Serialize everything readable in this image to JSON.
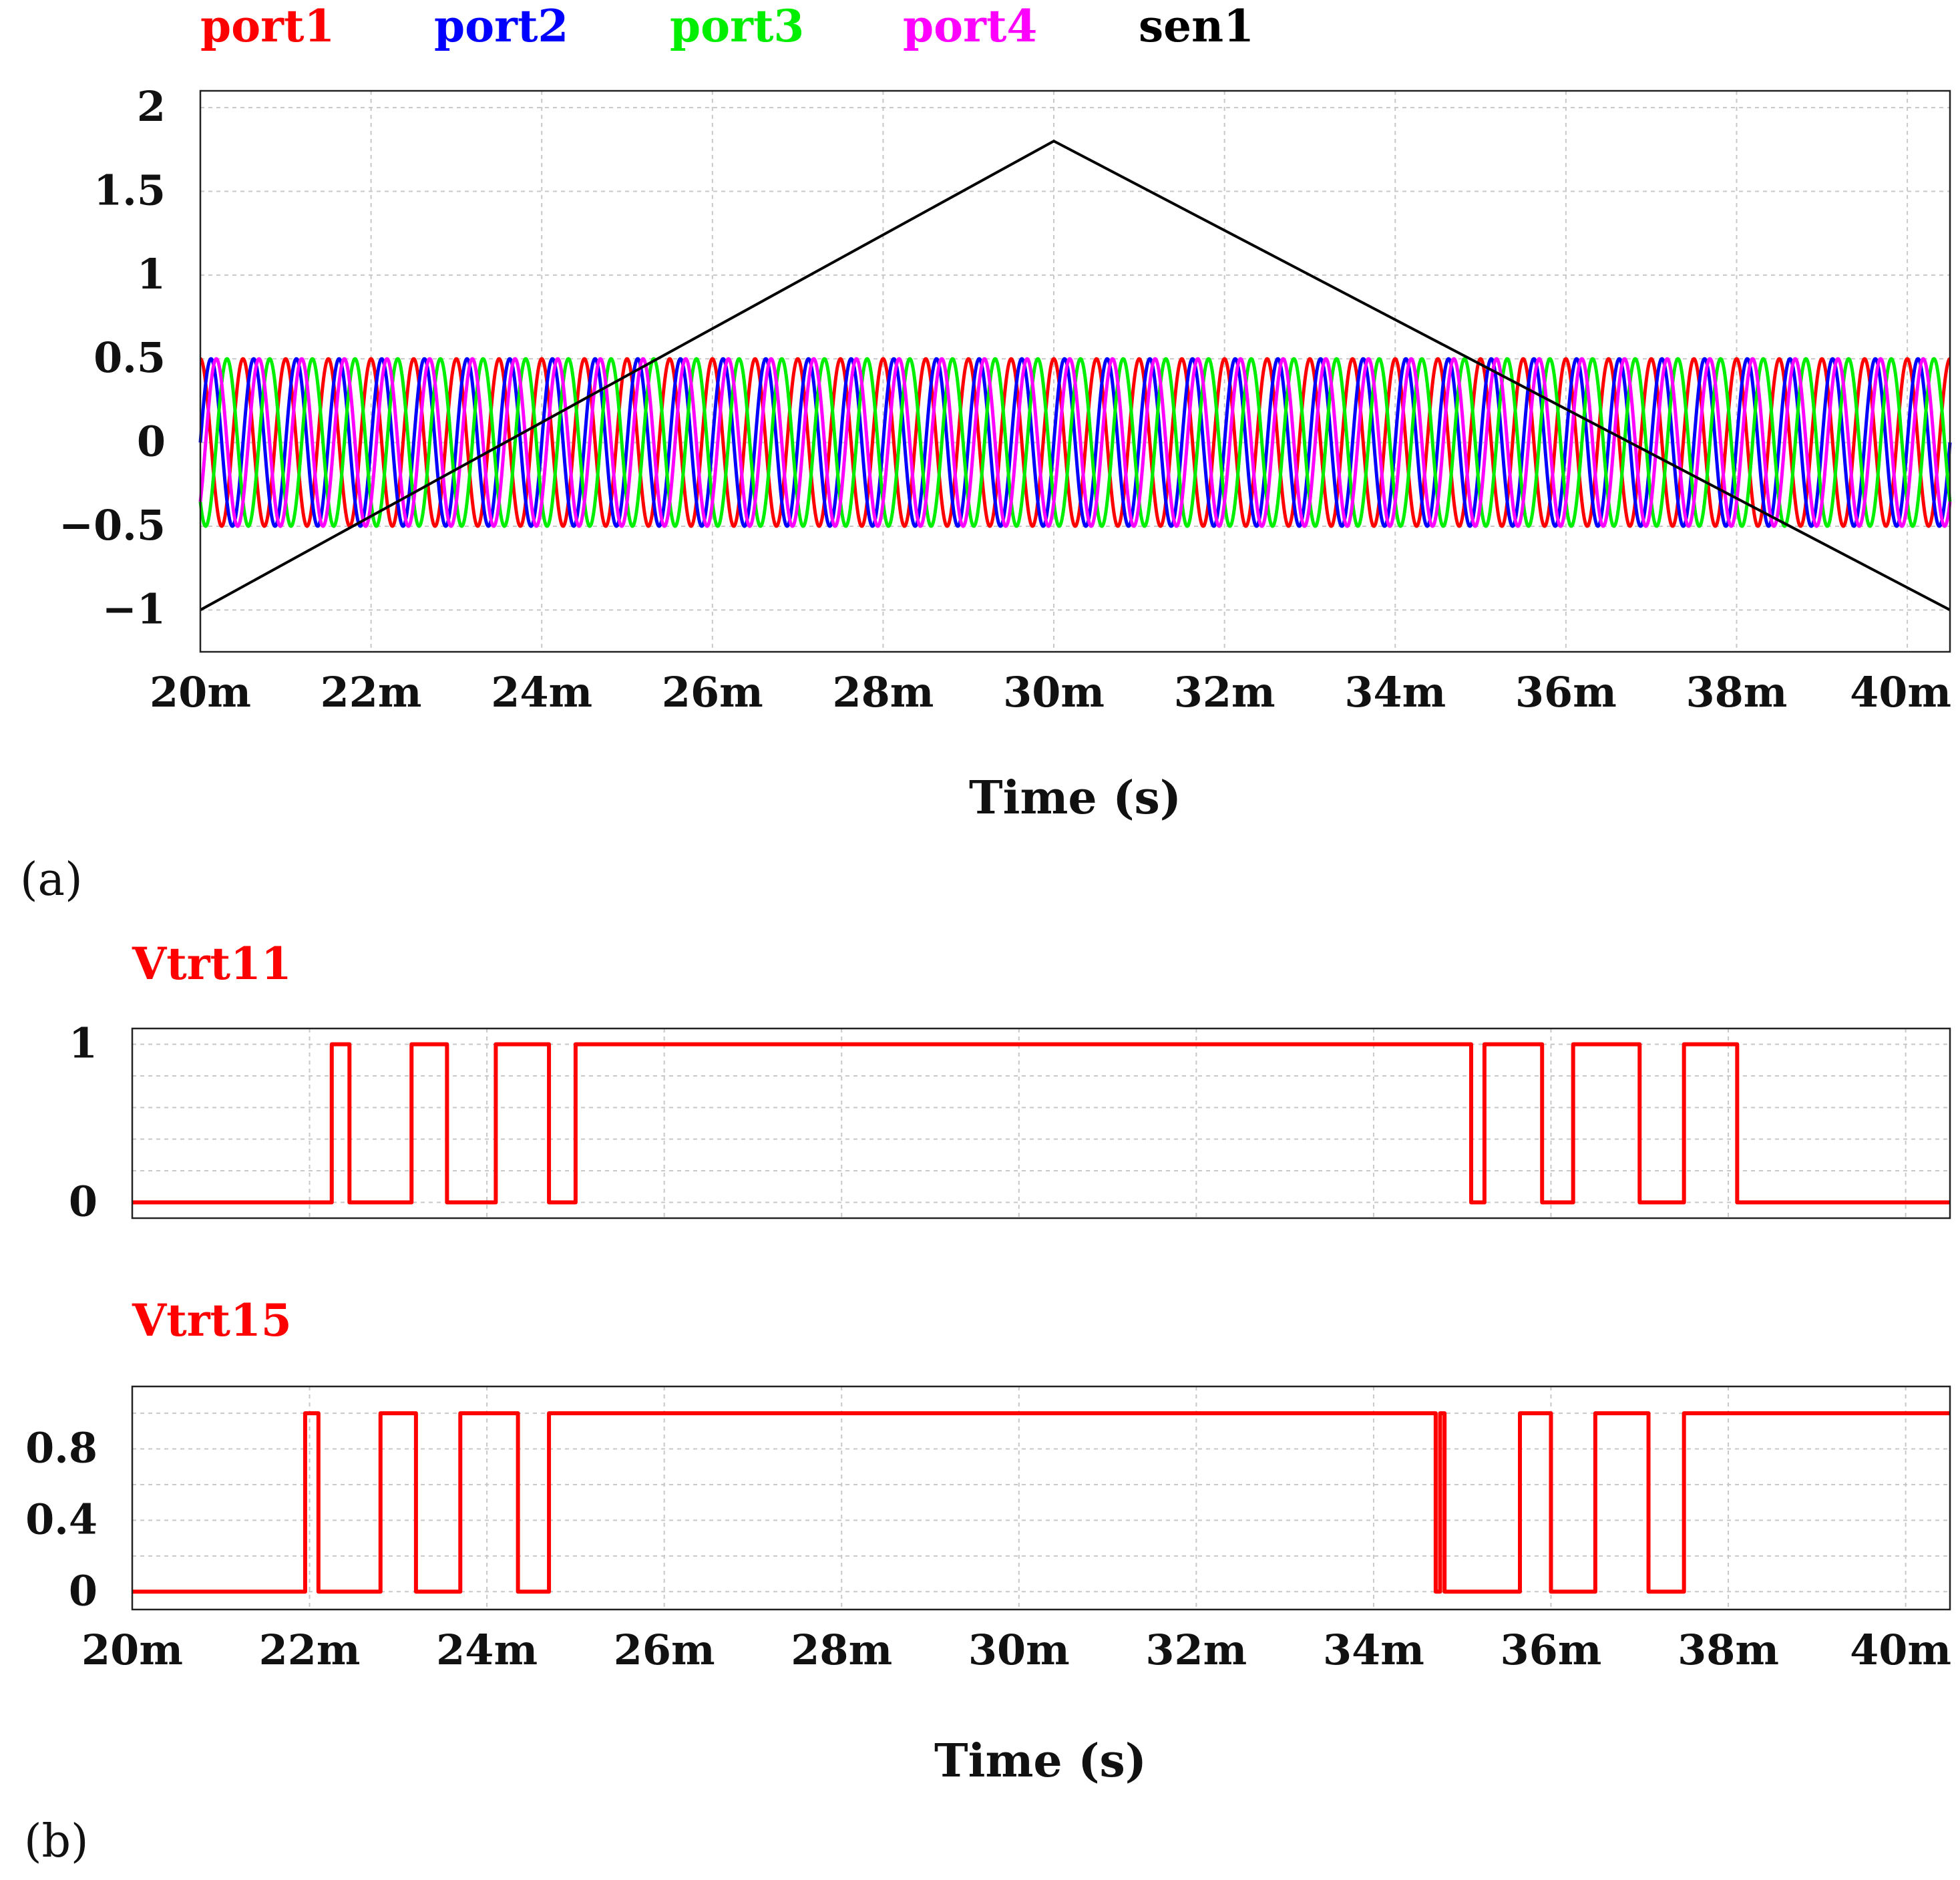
{
  "chart_data": [
    {
      "type": "line",
      "panel_label": "(a)",
      "xlabel": "Time (s)",
      "x_range": [
        0.02,
        0.0405
      ],
      "x_ticks": [
        "20m",
        "22m",
        "24m",
        "26m",
        "28m",
        "30m",
        "32m",
        "34m",
        "36m",
        "38m",
        "40m"
      ],
      "y_range": [
        -1.25,
        2.1
      ],
      "y_ticks": [
        "2",
        "1.5",
        "1",
        "0.5",
        "0",
        "−0.5",
        "−1"
      ],
      "grid": true,
      "legend_position": "top",
      "series": [
        {
          "name": "port1",
          "color": "#ff0000",
          "kind": "sine",
          "amplitude": 0.5,
          "frequency_hz": 2000,
          "phase_deg": 90
        },
        {
          "name": "port2",
          "color": "#0000ff",
          "kind": "sine",
          "amplitude": 0.5,
          "frequency_hz": 2000,
          "phase_deg": 0
        },
        {
          "name": "port3",
          "color": "#00ee00",
          "kind": "sine",
          "amplitude": 0.5,
          "frequency_hz": 2000,
          "phase_deg": 225
        },
        {
          "name": "port4",
          "color": "#ff00ff",
          "kind": "sine",
          "amplitude": 0.5,
          "frequency_hz": 2000,
          "phase_deg": 315
        },
        {
          "name": "sen1",
          "color": "#000000",
          "kind": "piecewise",
          "x": [
            0.02,
            0.03,
            0.0405
          ],
          "y": [
            -1.0,
            1.8,
            -1.0
          ]
        }
      ]
    },
    {
      "type": "line",
      "panel_label": "",
      "title": "Vtrt11",
      "title_color": "#ff0000",
      "x_range": [
        0.02,
        0.0405
      ],
      "y_range": [
        -0.1,
        1.1
      ],
      "y_ticks": [
        "1",
        "0"
      ],
      "grid": true,
      "series": [
        {
          "name": "Vtrt11",
          "color": "#ff0000",
          "kind": "step",
          "x": [
            0.02,
            0.02225,
            0.02225,
            0.02245,
            0.02245,
            0.02315,
            0.02315,
            0.02355,
            0.02355,
            0.0241,
            0.0241,
            0.0247,
            0.0247,
            0.025,
            0.025,
            0.0351,
            0.0351,
            0.03525,
            0.03525,
            0.0359,
            0.0359,
            0.03625,
            0.03625,
            0.037,
            0.037,
            0.0375,
            0.0375,
            0.0381,
            0.0381,
            0.0405
          ],
          "y": [
            0,
            0,
            1,
            1,
            0,
            0,
            1,
            1,
            0,
            0,
            1,
            1,
            0,
            0,
            1,
            1,
            0,
            0,
            1,
            1,
            0,
            0,
            1,
            1,
            0,
            0,
            1,
            1,
            0,
            0
          ]
        }
      ]
    },
    {
      "type": "line",
      "panel_label": "(b)",
      "title": "Vtrt15",
      "title_color": "#ff0000",
      "xlabel": "Time (s)",
      "x_range": [
        0.02,
        0.0405
      ],
      "x_ticks": [
        "20m",
        "22m",
        "24m",
        "26m",
        "28m",
        "30m",
        "32m",
        "34m",
        "36m",
        "38m",
        "40m"
      ],
      "y_range": [
        -0.1,
        1.15
      ],
      "y_ticks": [
        "0.8",
        "0.4",
        "0"
      ],
      "grid": true,
      "series": [
        {
          "name": "Vtrt15",
          "color": "#ff0000",
          "kind": "step",
          "x": [
            0.02,
            0.02195,
            0.02195,
            0.0221,
            0.0221,
            0.0228,
            0.0228,
            0.0232,
            0.0232,
            0.0237,
            0.0237,
            0.02435,
            0.02435,
            0.0247,
            0.0247,
            0.0347,
            0.0347,
            0.03475,
            0.03475,
            0.0348,
            0.0348,
            0.03565,
            0.03565,
            0.036,
            0.036,
            0.0365,
            0.0365,
            0.0371,
            0.0371,
            0.0375,
            0.0375,
            0.0405
          ],
          "y": [
            0,
            0,
            1,
            1,
            0,
            0,
            1,
            1,
            0,
            0,
            1,
            1,
            0,
            0,
            1,
            1,
            0,
            0,
            1,
            1,
            0,
            0,
            1,
            1,
            0,
            0,
            1,
            1,
            0,
            0,
            1,
            1
          ]
        }
      ]
    }
  ]
}
